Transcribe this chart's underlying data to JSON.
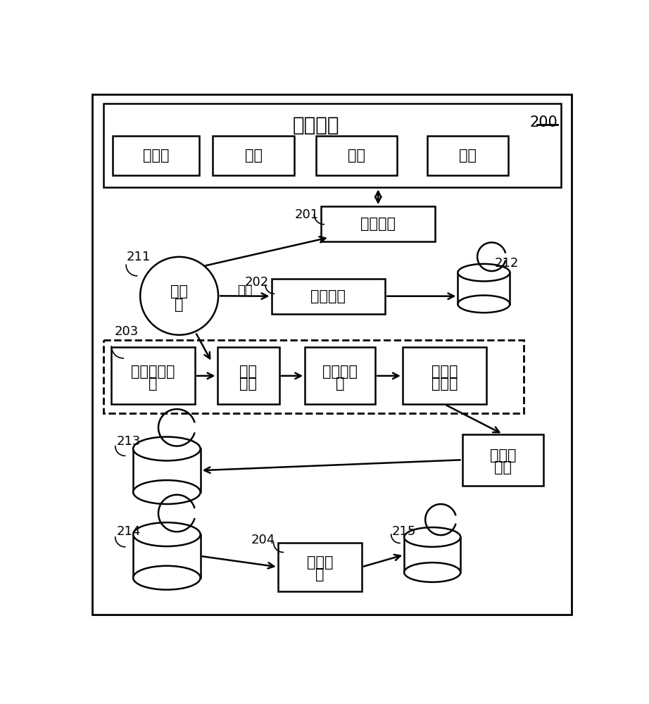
{
  "bg_color": "#ffffff",
  "title": "开放平台",
  "label_200": "200",
  "platform_boxes": [
    "饼了么",
    "美团",
    "京东",
    "饼百"
  ],
  "box_201": "数据拉取",
  "box_202": "数据消费",
  "circle_211": "流处理",
  "listen_label": "监听",
  "label_211": "211",
  "label_201": "201",
  "label_202": "202",
  "label_212": "212",
  "label_203": "203",
  "box_remove": "去除特殊字符",
  "box_dedup": "数据去重",
  "box_check": "一致性检查",
  "box_clean": "无效数据清理",
  "box_struct": "数据结构化",
  "label_213": "213",
  "label_214": "214",
  "label_204": "204",
  "box_match": "关系匹配",
  "label_215": "215"
}
